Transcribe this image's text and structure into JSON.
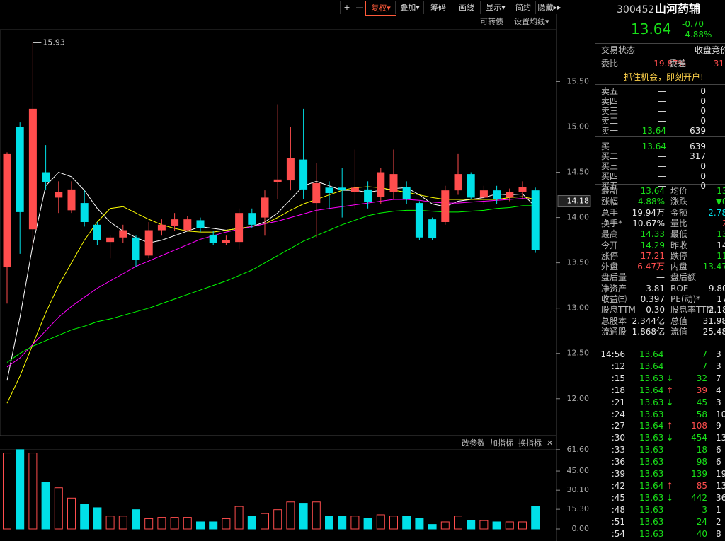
{
  "toolbar": {
    "buttons": [
      "+",
      "—",
      "复权▾",
      "叠加▾",
      "筹码",
      "画线",
      "显示▾",
      "简约",
      "隐藏▸▸"
    ],
    "sub": [
      "可转债",
      "设置均线▾"
    ]
  },
  "volume_toolbar": [
    "改参数",
    "加指标",
    "换指标",
    "✕"
  ],
  "chart_data": [
    {
      "type": "candlestick",
      "up_color": "#ff4d4d",
      "down_color": "#00e0e8",
      "open": [
        13.45,
        15.0,
        13.87,
        14.5,
        14.22,
        14.08,
        14.16,
        13.92,
        13.73,
        13.78,
        13.78,
        13.58,
        13.86,
        13.91,
        13.86,
        13.97,
        13.81,
        13.72,
        13.73,
        14.05,
        14.0,
        14.39,
        14.41,
        14.64,
        14.16,
        14.33,
        14.33,
        14.28,
        14.31,
        14.23,
        14.28,
        14.34,
        14.16,
        13.98,
        13.95,
        14.3,
        14.48,
        14.22,
        14.3,
        14.22,
        14.28,
        14.3
      ],
      "high": [
        14.72,
        15.05,
        15.93,
        14.8,
        14.4,
        14.4,
        14.3,
        13.95,
        13.8,
        13.92,
        13.8,
        13.95,
        13.98,
        14.05,
        14.02,
        14.0,
        13.85,
        13.8,
        14.1,
        14.1,
        14.3,
        15.25,
        15.0,
        15.2,
        14.6,
        14.4,
        14.55,
        14.75,
        14.4,
        14.55,
        14.75,
        14.4,
        14.18,
        14.0,
        14.35,
        14.7,
        14.5,
        14.35,
        14.35,
        14.32,
        14.4,
        14.33
      ],
      "low": [
        13.05,
        13.6,
        13.68,
        14.3,
        14.05,
        14.05,
        13.9,
        13.7,
        13.55,
        13.72,
        13.45,
        13.55,
        13.8,
        13.85,
        13.85,
        13.84,
        13.7,
        13.7,
        13.65,
        13.88,
        13.8,
        14.2,
        14.3,
        14.2,
        13.78,
        14.1,
        14.0,
        14.1,
        14.1,
        14.15,
        14.2,
        14.15,
        13.75,
        13.75,
        13.92,
        14.25,
        14.2,
        14.15,
        14.15,
        14.18,
        14.2,
        13.61
      ],
      "close": [
        14.7,
        14.06,
        15.2,
        14.39,
        14.28,
        14.31,
        13.95,
        13.75,
        13.78,
        13.86,
        13.53,
        13.86,
        13.92,
        13.98,
        13.98,
        13.88,
        13.72,
        13.75,
        14.05,
        13.92,
        14.22,
        14.42,
        14.66,
        14.31,
        14.38,
        14.27,
        14.3,
        14.33,
        14.17,
        14.5,
        14.48,
        14.2,
        13.78,
        13.77,
        14.3,
        14.48,
        14.22,
        14.3,
        14.2,
        14.28,
        14.34,
        13.64
      ],
      "ma_lines": [
        {
          "color": "#ffffff",
          "values": [
            12.2,
            12.9,
            13.7,
            14.35,
            14.5,
            14.45,
            14.3,
            14.1,
            13.95,
            13.85,
            13.78,
            13.72,
            13.75,
            13.8,
            13.85,
            13.9,
            13.88,
            13.86,
            13.88,
            13.9,
            13.95,
            14.05,
            14.2,
            14.35,
            14.4,
            14.35,
            14.3,
            14.3,
            14.28,
            14.3,
            14.32,
            14.33,
            14.25,
            14.15,
            14.12,
            14.18,
            14.2,
            14.22,
            14.26,
            14.25,
            14.26,
            14.12
          ]
        },
        {
          "color": "#ffff00",
          "values": [
            11.95,
            12.25,
            12.6,
            12.95,
            13.25,
            13.5,
            13.75,
            13.95,
            14.1,
            14.12,
            14.05,
            13.98,
            13.92,
            13.88,
            13.85,
            13.84,
            13.84,
            13.86,
            13.88,
            13.9,
            13.93,
            14.0,
            14.08,
            14.15,
            14.2,
            14.25,
            14.3,
            14.33,
            14.34,
            14.33,
            14.3,
            14.28,
            14.25,
            14.22,
            14.2,
            14.2,
            14.2,
            14.2,
            14.2,
            14.22,
            14.23,
            14.2
          ]
        },
        {
          "color": "#ff00ff",
          "values": [
            12.35,
            12.45,
            12.6,
            12.75,
            12.9,
            13.02,
            13.12,
            13.22,
            13.3,
            13.38,
            13.46,
            13.52,
            13.58,
            13.64,
            13.7,
            13.76,
            13.8,
            13.84,
            13.87,
            13.9,
            13.93,
            13.96,
            14.0,
            14.04,
            14.08,
            14.1,
            14.12,
            14.14,
            14.16,
            14.18,
            14.2,
            14.2,
            14.19,
            14.17,
            14.16,
            14.16,
            14.17,
            14.18,
            14.19,
            14.2,
            14.21,
            14.2
          ]
        },
        {
          "color": "#00ff00",
          "values": [
            12.4,
            12.5,
            12.58,
            12.64,
            12.7,
            12.76,
            12.8,
            12.85,
            12.88,
            12.92,
            12.96,
            13.0,
            13.05,
            13.1,
            13.15,
            13.2,
            13.25,
            13.3,
            13.36,
            13.42,
            13.5,
            13.58,
            13.66,
            13.74,
            13.8,
            13.86,
            13.92,
            13.97,
            14.02,
            14.05,
            14.07,
            14.08,
            14.08,
            14.07,
            14.06,
            14.06,
            14.07,
            14.08,
            14.1,
            14.11,
            14.13,
            14.13
          ]
        }
      ],
      "ylim": [
        11.6,
        16.05
      ],
      "yticks": [
        {
          "value": 12,
          "label": "12.00"
        },
        {
          "value": 12.5,
          "label": "12.50"
        },
        {
          "value": 13,
          "label": "13.00"
        },
        {
          "value": 13.5,
          "label": "13.50"
        },
        {
          "value": 14,
          "label": "14.00"
        },
        {
          "value": 14.5,
          "label": "14.50"
        },
        {
          "value": 15,
          "label": "15.00"
        },
        {
          "value": 15.5,
          "label": "15.50"
        }
      ],
      "high_label": 15.93,
      "price_tag": 14.18
    },
    {
      "type": "bar",
      "values": [
        59,
        61.6,
        59,
        36,
        32,
        24,
        19,
        16.5,
        10,
        10,
        15,
        8,
        9,
        9,
        9,
        5.5,
        5.5,
        8,
        17.5,
        10,
        12,
        15,
        21,
        20,
        21,
        10,
        10,
        10,
        8,
        11,
        10,
        10,
        8,
        3.5,
        5.5,
        10,
        6.5,
        6.5,
        5.5,
        5.5,
        5.5,
        17.5
      ],
      "ylim": [
        0,
        64.8
      ],
      "yticks": [
        {
          "value": 0,
          "label": "0.00"
        },
        {
          "value": 15.3,
          "label": "15.30"
        },
        {
          "value": 30.1,
          "label": "30.10"
        },
        {
          "value": 45,
          "label": "45.00"
        },
        {
          "value": 61.6,
          "label": "61.60"
        }
      ]
    }
  ],
  "quote": {
    "code": "300452",
    "name": "山河药辅",
    "price": "13.64",
    "change": "-0.70",
    "pct": "-4.88%",
    "status_label": "交易状态",
    "status": "收盘竞价",
    "ratio_label": "委比",
    "ratio": "19.87%",
    "diff_label": "委差",
    "diff": "31",
    "promo": "抓住机会，即刻开户!"
  },
  "order_book": [
    {
      "label": "卖五",
      "price": "—",
      "vol": "0"
    },
    {
      "label": "卖四",
      "price": "—",
      "vol": "0"
    },
    {
      "label": "卖三",
      "price": "—",
      "vol": "0"
    },
    {
      "label": "卖二",
      "price": "—",
      "vol": "0"
    },
    {
      "label": "卖一",
      "price": "13.64",
      "vol": "639"
    },
    {
      "label": "买一",
      "price": "13.64",
      "vol": "639"
    },
    {
      "label": "买二",
      "price": "—",
      "vol": "317"
    },
    {
      "label": "买三",
      "price": "—",
      "vol": "0"
    },
    {
      "label": "买四",
      "price": "—",
      "vol": "0"
    },
    {
      "label": "买五",
      "price": "—",
      "vol": "0"
    }
  ],
  "stats": [
    [
      {
        "label": "最新",
        "value": "13.64",
        "color": "green"
      },
      {
        "label": "均价",
        "value": "13.9",
        "color": "green"
      }
    ],
    [
      {
        "label": "涨幅",
        "value": "-4.88%",
        "color": "green"
      },
      {
        "label": "涨跌",
        "value": "▼0.7",
        "color": "green"
      }
    ],
    [
      {
        "label": "总手",
        "value": "19.94万",
        "color": "white"
      },
      {
        "label": "金额",
        "value": "2.78亿",
        "color": "cyan"
      }
    ],
    [
      {
        "label": "换手*",
        "value": "10.67%",
        "color": "white"
      },
      {
        "label": "量比",
        "value": "2.4",
        "color": "red"
      }
    ],
    [
      {
        "label": "最高",
        "value": "14.33",
        "color": "green"
      },
      {
        "label": "最低",
        "value": "13.6",
        "color": "green"
      }
    ],
    [
      {
        "label": "今开",
        "value": "14.29",
        "color": "green"
      },
      {
        "label": "昨收",
        "value": "14.3",
        "color": "white"
      }
    ],
    [
      {
        "label": "涨停",
        "value": "17.21",
        "color": "red"
      },
      {
        "label": "跌停",
        "value": "11.4",
        "color": "green"
      }
    ],
    [
      {
        "label": "外盘",
        "value": "6.47万",
        "color": "red"
      },
      {
        "label": "内盘",
        "value": "13.47万",
        "color": "green"
      }
    ],
    [
      {
        "label": "盘后量",
        "value": "—",
        "color": "white"
      },
      {
        "label": "盘后额",
        "value": "—",
        "color": "white"
      }
    ],
    [
      {
        "label": "净资产",
        "value": "3.81",
        "color": "white"
      },
      {
        "label": "ROE",
        "value": "9.80%",
        "color": "white"
      }
    ],
    [
      {
        "label": "收益㈢",
        "value": "0.397",
        "color": "white"
      },
      {
        "label": "PE(动)*",
        "value": "17.1",
        "color": "white"
      }
    ],
    [
      {
        "label": "股息TTM",
        "value": "0.30",
        "color": "white"
      },
      {
        "label": "股息率TTM",
        "value": "2.18%",
        "color": "white"
      }
    ],
    [
      {
        "label": "总股本",
        "value": "2.344亿",
        "color": "white"
      },
      {
        "label": "总值",
        "value": "31.98亿",
        "color": "white"
      }
    ],
    [
      {
        "label": "流通股",
        "value": "1.868亿",
        "color": "white"
      },
      {
        "label": "流值",
        "value": "25.48亿",
        "color": "white"
      }
    ]
  ],
  "ticks": [
    {
      "time": "14:56",
      "price": "13.64",
      "dir": "",
      "vol": "7",
      "count": "3"
    },
    {
      "time": ":12",
      "price": "13.64",
      "dir": "",
      "vol": "7",
      "count": "3"
    },
    {
      "time": ":15",
      "price": "13.63",
      "dir": "↓",
      "vol": "32",
      "count": "7"
    },
    {
      "time": ":18",
      "price": "13.64",
      "dir": "↑",
      "vol": "39",
      "count": "4"
    },
    {
      "time": ":21",
      "price": "13.63",
      "dir": "↓",
      "vol": "45",
      "count": "3"
    },
    {
      "time": ":24",
      "price": "13.63",
      "dir": "",
      "vol": "58",
      "count": "10"
    },
    {
      "time": ":27",
      "price": "13.64",
      "dir": "↑",
      "vol": "108",
      "count": "9"
    },
    {
      "time": ":30",
      "price": "13.63",
      "dir": "↓",
      "vol": "454",
      "count": "13"
    },
    {
      "time": ":33",
      "price": "13.63",
      "dir": "",
      "vol": "18",
      "count": "6"
    },
    {
      "time": ":36",
      "price": "13.63",
      "dir": "",
      "vol": "98",
      "count": "6"
    },
    {
      "time": ":39",
      "price": "13.63",
      "dir": "",
      "vol": "139",
      "count": "19"
    },
    {
      "time": ":42",
      "price": "13.64",
      "dir": "↑",
      "vol": "85",
      "count": "13"
    },
    {
      "time": ":45",
      "price": "13.63",
      "dir": "↓",
      "vol": "442",
      "count": "36"
    },
    {
      "time": ":48",
      "price": "13.63",
      "dir": "",
      "vol": "3",
      "count": "1"
    },
    {
      "time": ":51",
      "price": "13.63",
      "dir": "",
      "vol": "24",
      "count": "2"
    },
    {
      "time": ":54",
      "price": "13.63",
      "dir": "",
      "vol": "40",
      "count": "8"
    }
  ]
}
